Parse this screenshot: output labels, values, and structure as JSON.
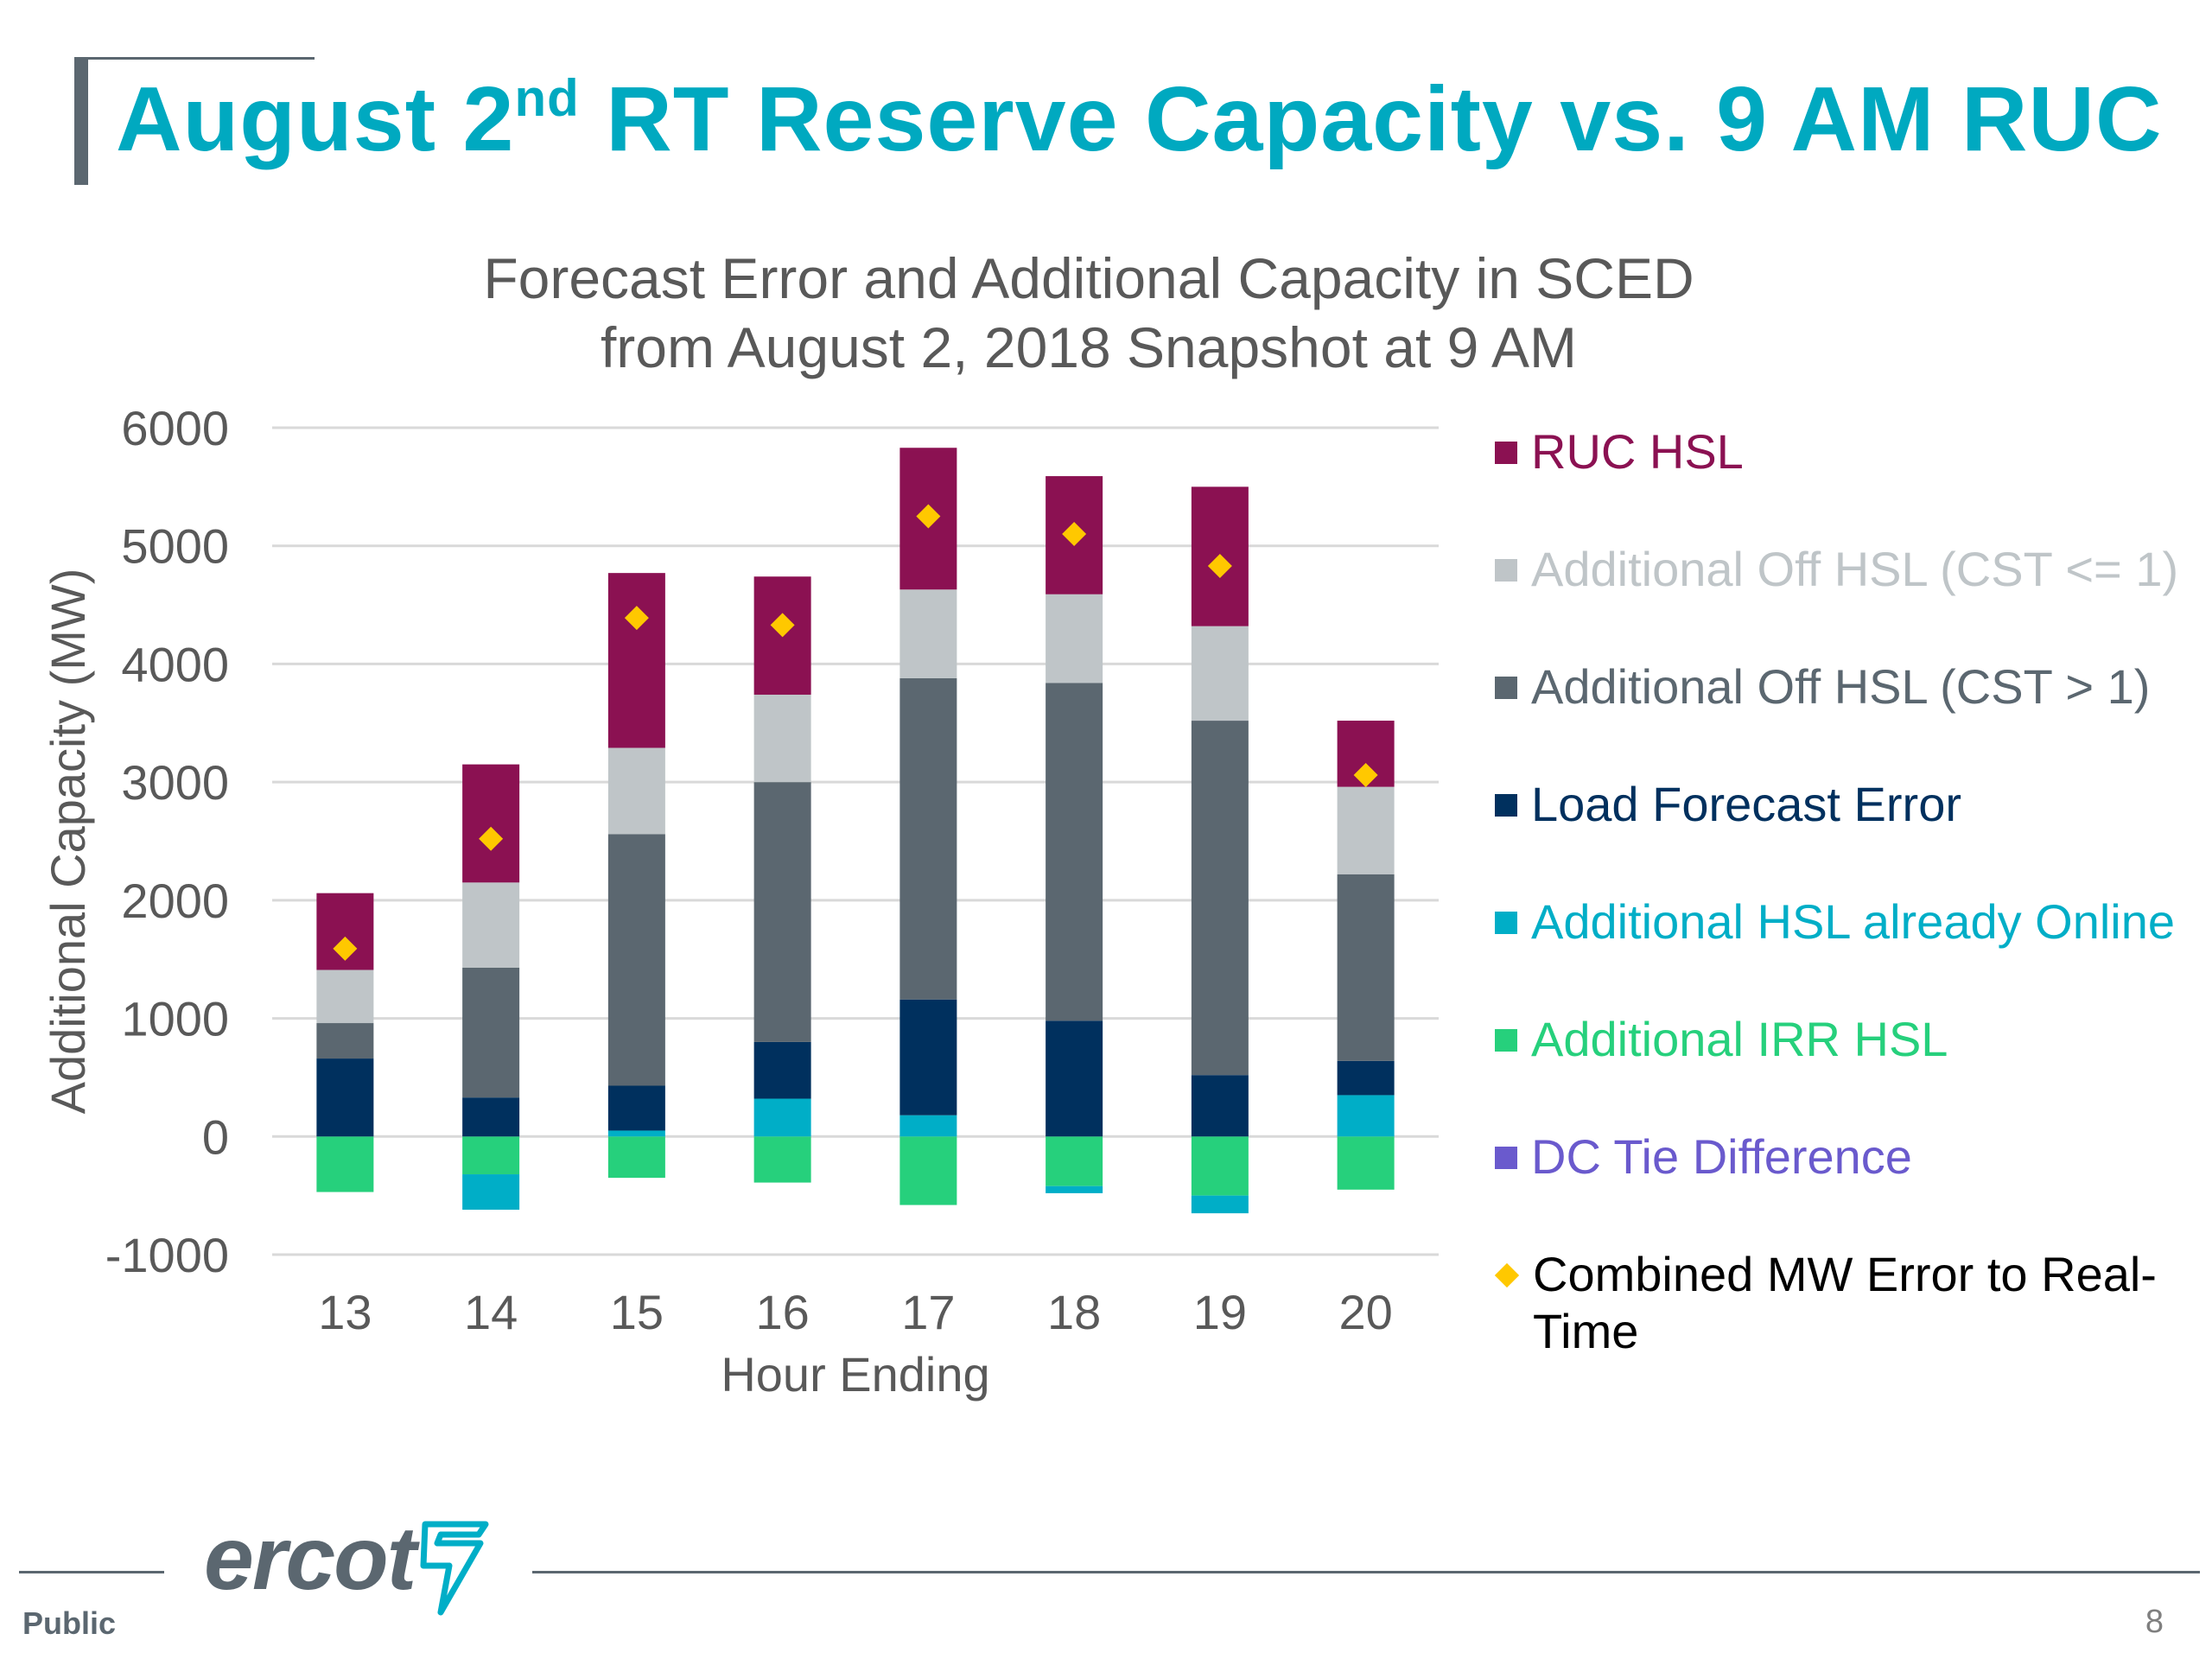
{
  "slide": {
    "title_main": "August 2",
    "title_sup": "nd",
    "title_rest": " RT Reserve Capacity vs. 9 AM RUC",
    "footer_label": "Public",
    "page_number": "8",
    "logo_text": "ercot",
    "accent_color": "#00a9c0",
    "brand_gray": "#5b6770"
  },
  "chart_data": {
    "type": "bar",
    "stacked": true,
    "title_line1": "Forecast Error and Additional Capacity in SCED",
    "title_line2": "from August 2, 2018 Snapshot at 9 AM",
    "xlabel": "Hour Ending",
    "ylabel": "Additional Capacity (MW)",
    "ylim": [
      -1000,
      6000
    ],
    "yticks": [
      -1000,
      0,
      1000,
      2000,
      3000,
      4000,
      5000,
      6000
    ],
    "grid": true,
    "legend_position": "right",
    "categories": [
      "13",
      "14",
      "15",
      "16",
      "17",
      "18",
      "19",
      "20"
    ],
    "series": [
      {
        "name": "RUC HSL",
        "color": "#8b1152",
        "values": [
          650,
          1000,
          1480,
          1000,
          1200,
          1000,
          1180,
          560
        ]
      },
      {
        "name": "Additional Off HSL (CST <= 1)",
        "color": "#bfc5c8",
        "values": [
          450,
          720,
          730,
          740,
          750,
          750,
          800,
          740
        ]
      },
      {
        "name": "Additional Off HSL (CST > 1)",
        "color": "#5b6770",
        "values": [
          300,
          1100,
          2130,
          2200,
          2720,
          2860,
          3000,
          1580
        ]
      },
      {
        "name": "Load Forecast Error",
        "color": "#00305e",
        "values": [
          660,
          330,
          380,
          480,
          980,
          980,
          520,
          290
        ]
      },
      {
        "name": "Additional HSL already Online",
        "color": "#00aec7",
        "values": [
          0,
          -300,
          50,
          320,
          180,
          -60,
          -150,
          350
        ]
      },
      {
        "name": "Additional IRR HSL",
        "color": "#26d07c",
        "values": [
          -470,
          -320,
          -350,
          -390,
          -580,
          -420,
          -500,
          -450
        ]
      },
      {
        "name": "DC Tie Difference",
        "color": "#6a5acd",
        "values": [
          0,
          0,
          0,
          0,
          0,
          0,
          0,
          0
        ]
      }
    ],
    "markers": {
      "name": "Combined MW Error to Real-Time",
      "color": "#ffc800",
      "values": [
        1590,
        2520,
        4390,
        4330,
        5250,
        5100,
        4830,
        3060
      ]
    }
  }
}
